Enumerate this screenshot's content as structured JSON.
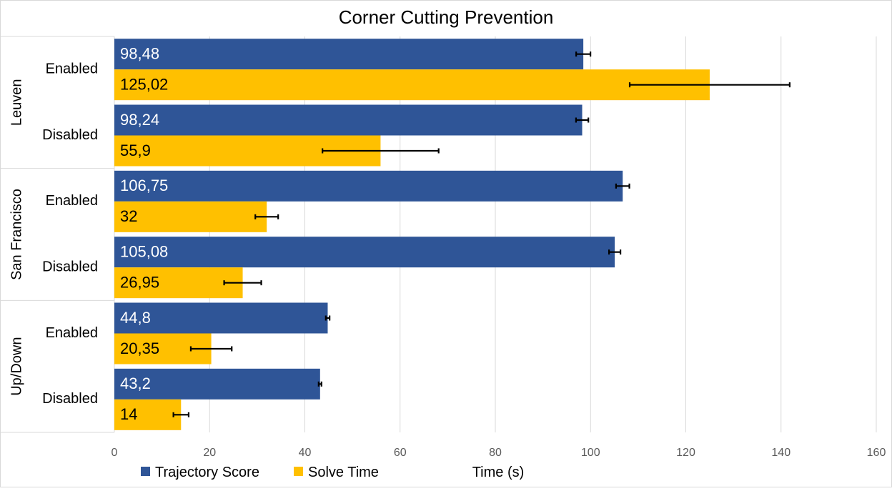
{
  "chart_data": {
    "type": "bar",
    "orientation": "horizontal",
    "title": "Corner Cutting Prevention",
    "xlabel": "Time (s)",
    "xlim": [
      0,
      160
    ],
    "x_ticks": [
      "0",
      "20",
      "40",
      "60",
      "80",
      "100",
      "120",
      "140",
      "160"
    ],
    "grid": "vertical",
    "legend_position": "bottom-left",
    "groups": [
      {
        "label": "Leuven",
        "rows": [
          {
            "label": "Enabled",
            "values": [
              98.48,
              125.02
            ],
            "value_labels": [
              "98,48",
              "125,02"
            ],
            "errors": [
              1.5,
              16.8
            ]
          },
          {
            "label": "Disabled",
            "values": [
              98.24,
              55.9
            ],
            "value_labels": [
              "98,24",
              "55,9"
            ],
            "errors": [
              1.3,
              12.2
            ]
          }
        ]
      },
      {
        "label": "San Francisco",
        "rows": [
          {
            "label": "Enabled",
            "values": [
              106.75,
              32
            ],
            "value_labels": [
              "106,75",
              "32"
            ],
            "errors": [
              1.4,
              2.4
            ]
          },
          {
            "label": "Disabled",
            "values": [
              105.08,
              26.95
            ],
            "value_labels": [
              "105,08",
              "26,95"
            ],
            "errors": [
              1.2,
              3.9
            ]
          }
        ]
      },
      {
        "label": "Up/Down",
        "rows": [
          {
            "label": "Enabled",
            "values": [
              44.8,
              20.35
            ],
            "value_labels": [
              "44,8",
              "20,35"
            ],
            "errors": [
              0.4,
              4.3
            ]
          },
          {
            "label": "Disabled",
            "values": [
              43.2,
              14
            ],
            "value_labels": [
              "43,2",
              "14"
            ],
            "errors": [
              0.3,
              1.6
            ]
          }
        ]
      }
    ],
    "series": [
      {
        "name": "Trajectory Score",
        "color": "#2f5597",
        "label_color": "#ffffff"
      },
      {
        "name": "Solve Time",
        "color": "#ffc000",
        "label_color": "#000000"
      }
    ]
  }
}
